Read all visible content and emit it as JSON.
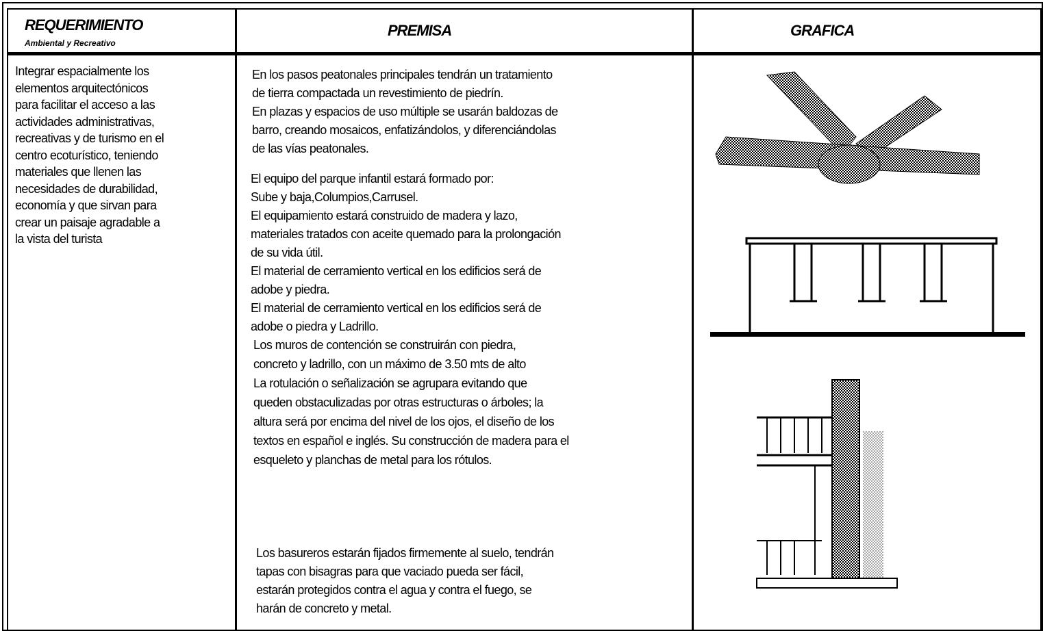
{
  "header": {
    "col1_title": "REQUERIMIENTO",
    "col1_subtitle": "Ambiental y Recreativo",
    "col2_title": "PREMISA",
    "col3_title": "GRAFICA"
  },
  "requirement": [
    "Integrar espacialmente los",
    "elementos arquitectónicos",
    "para facilitar el acceso a las",
    "actividades administrativas,",
    "recreativas y de turismo en el",
    "centro ecoturístico, teniendo",
    "materiales que llenen las",
    "necesidades de durabilidad,",
    "economía y que sirvan para",
    "crear un paisaje agradable a",
    "la vista del turista"
  ],
  "premises": [
    [
      "En los pasos peatonales principales tendrán un tratamiento",
      "de tierra compactada un revestimiento de piedrín.",
      "En plazas y espacios de uso múltiple se usarán baldozas de",
      "barro, creando mosaicos, enfatizándolos, y diferenciándolas",
      "de las vías peatonales."
    ],
    [
      "El equipo del parque infantil estará formado por:",
      "Sube y baja,Columpios,Carrusel.",
      "El equipamiento estará construido de madera y lazo,",
      "materiales tratados con aceite quemado para la prolongación",
      "de su vida útil.",
      "El material de cerramiento vertical en los edificios será de",
      "adobe y piedra.",
      "El material de cerramiento vertical en los edificios será de",
      "adobe o piedra y Ladrillo."
    ],
    [
      "Los muros de contención se construirán con piedra,",
      "concreto y ladrillo, con un máximo de 3.50 mts de alto",
      "La rotulación o señalización se agrupara evitando que",
      "queden obstaculizadas por otras estructuras o árboles; la",
      "altura será por encima del nivel de los ojos, el diseño de los",
      "textos en español e inglés. Su construcción de madera para el",
      "esqueleto y planchas de metal para los rótulos."
    ],
    [
      "Los basureros estarán fijados firmemente al suelo, tendrán",
      "tapas con bisagras para que vaciado pueda ser fácil,",
      "estarán protegidos contra el agua y contra el fuego, se",
      "harán de concreto y metal."
    ]
  ]
}
